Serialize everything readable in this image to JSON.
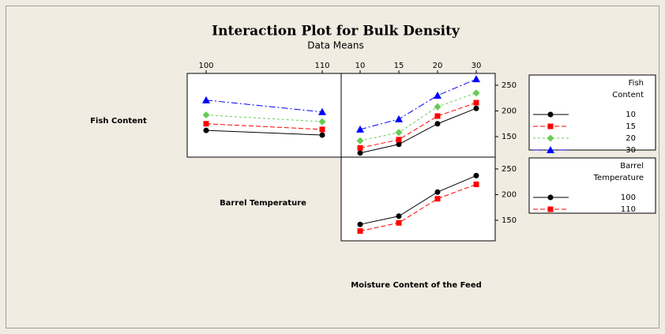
{
  "title": "Interaction Plot for Bulk Density",
  "subtitle": "Data Means",
  "factors": [
    "Fish Content",
    "Barrel Temperature",
    "Moisture Content of the Feed"
  ],
  "chart_data": [
    {
      "type": "line",
      "panel": "top-left",
      "x_axis": "top",
      "categories": [
        100,
        110
      ],
      "ylim": [
        110,
        273
      ],
      "series": [
        {
          "color": "#000000",
          "marker": "circle",
          "line_style": "solid",
          "values": [
            162,
            153
          ]
        },
        {
          "color": "#ff0000",
          "marker": "square",
          "line_style": "dashed",
          "values": [
            175,
            164
          ]
        },
        {
          "color": "#66cc55",
          "marker": "diamond",
          "line_style": "dotted",
          "values": [
            192,
            179
          ]
        },
        {
          "color": "#0000ff",
          "marker": "triangle",
          "line_style": "dashdot",
          "values": [
            221,
            198
          ]
        }
      ]
    },
    {
      "type": "line",
      "panel": "top-right",
      "x_axis": "top",
      "y_axis": "right",
      "categories": [
        10,
        15,
        20,
        30
      ],
      "ylim": [
        110,
        273
      ],
      "yticks": [
        150,
        200,
        250
      ],
      "legend_title": [
        "Fish",
        "Content"
      ],
      "series": [
        {
          "name": "10",
          "color": "#000000",
          "marker": "circle",
          "line_style": "solid",
          "values": [
            118,
            135,
            175,
            205
          ]
        },
        {
          "name": "15",
          "color": "#ff0000",
          "marker": "square",
          "line_style": "dashed",
          "values": [
            128,
            144,
            190,
            216
          ]
        },
        {
          "name": "20",
          "color": "#66cc55",
          "marker": "diamond",
          "line_style": "dotted",
          "values": [
            142,
            158,
            208,
            235
          ]
        },
        {
          "name": "30",
          "color": "#0000ff",
          "marker": "triangle",
          "line_style": "dashdot",
          "values": [
            164,
            184,
            230,
            262
          ]
        }
      ]
    },
    {
      "type": "line",
      "panel": "bottom-right",
      "y_axis": "right",
      "ylim": [
        110,
        273
      ],
      "yticks": [
        150,
        200,
        250
      ],
      "legend_title": [
        "Barrel",
        "Temperature"
      ],
      "series": [
        {
          "name": "100",
          "color": "#000000",
          "marker": "circle",
          "line_style": "solid",
          "values": [
            142,
            158,
            205,
            237
          ]
        },
        {
          "name": "110",
          "color": "#ff0000",
          "marker": "square",
          "line_style": "dashed",
          "values": [
            129,
            145,
            192,
            220
          ]
        }
      ]
    }
  ]
}
